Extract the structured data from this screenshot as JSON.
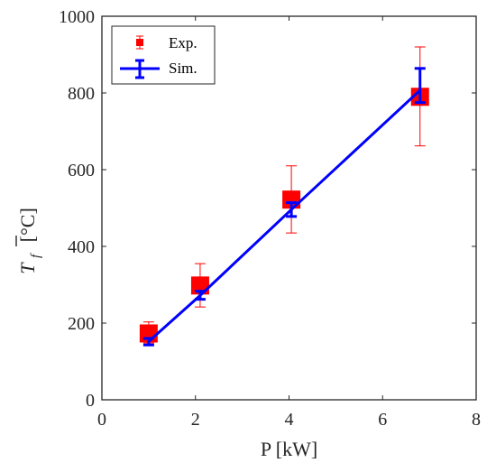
{
  "chart_data": {
    "type": "scatter",
    "xlabel": "P [kW]",
    "ylabel_base": "T",
    "ylabel_sub": "f",
    "ylabel_unit": "[°C]",
    "xlim": [
      0,
      8
    ],
    "ylim": [
      0,
      1000
    ],
    "xticks": [
      0,
      2,
      4,
      6,
      8
    ],
    "yticks": [
      0,
      200,
      400,
      600,
      800,
      1000
    ],
    "grid": false,
    "legend_position": "top-left",
    "series": [
      {
        "name": "Exp.",
        "style": "square-markers-with-errorbars",
        "color": "#ff0000",
        "points": [
          {
            "x": 1.0,
            "y": 173,
            "low": 148,
            "high": 203
          },
          {
            "x": 2.1,
            "y": 298,
            "low": 242,
            "high": 355
          },
          {
            "x": 4.05,
            "y": 522,
            "low": 435,
            "high": 610
          },
          {
            "x": 6.8,
            "y": 790,
            "low": 662,
            "high": 920
          }
        ]
      },
      {
        "name": "Sim.",
        "style": "line-with-errorbars",
        "color": "#0000ff",
        "points": [
          {
            "x": 1.0,
            "y": 152,
            "low": 143,
            "high": 160
          },
          {
            "x": 2.1,
            "y": 272,
            "low": 262,
            "high": 283
          },
          {
            "x": 4.05,
            "y": 496,
            "low": 478,
            "high": 514
          },
          {
            "x": 6.8,
            "y": 807,
            "low": 775,
            "high": 864
          }
        ]
      }
    ]
  }
}
